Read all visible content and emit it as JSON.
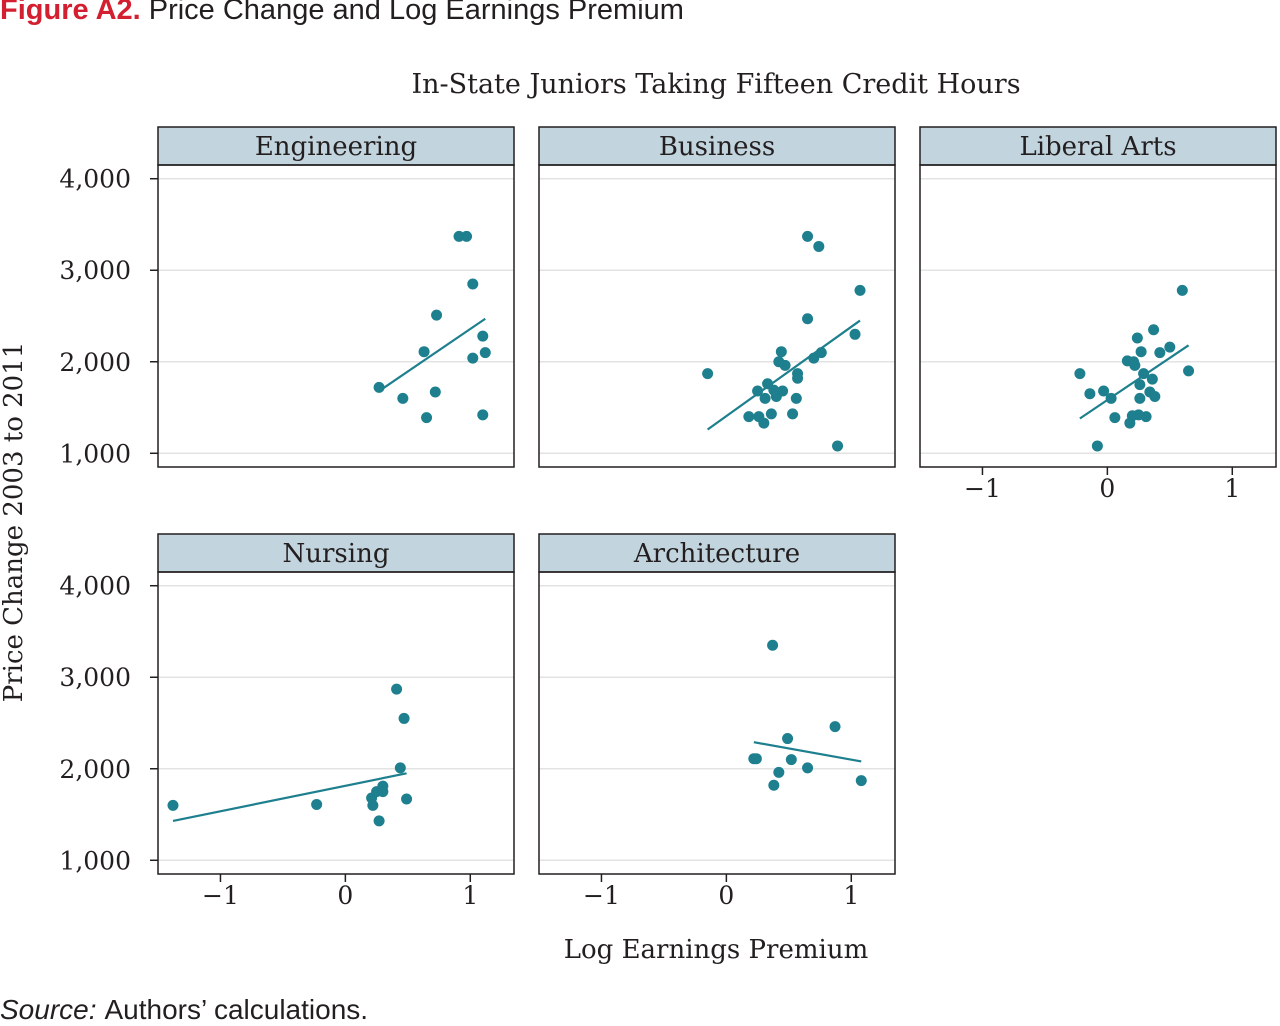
{
  "figure": {
    "number": "Figure A2.",
    "title": "Price Change and Log Earnings Premium",
    "source_label": "Source:",
    "source_text": "Authors’ calculations."
  },
  "chart_data": {
    "type": "scatter",
    "title": "In-State Juniors Taking Fifteen Credit Hours",
    "xlabel": "Log Earnings Premium",
    "ylabel": "Price Change 2003 to 2011",
    "xlim": [
      -1.5,
      1.35
    ],
    "ylim": [
      850,
      4150
    ],
    "xticks": [
      -1,
      0,
      1
    ],
    "xtick_labels": [
      "−1",
      "0",
      "1"
    ],
    "yticks": [
      1000,
      2000,
      3000,
      4000
    ],
    "ytick_labels": [
      "1,000",
      "2,000",
      "3,000",
      "4,000"
    ],
    "grid": "horizontal",
    "legend": "none",
    "colors": {
      "points": "#1e7f8e",
      "fit_line": "#1e7f8e",
      "panel_strip": "#c2d4dd",
      "gridline": "#e3e3e3"
    },
    "panels": [
      {
        "name": "Engineering",
        "points": [
          [
            0.27,
            1720
          ],
          [
            0.46,
            1600
          ],
          [
            0.63,
            2110
          ],
          [
            0.65,
            1390
          ],
          [
            0.72,
            1670
          ],
          [
            0.73,
            2510
          ],
          [
            0.91,
            3370
          ],
          [
            0.97,
            3370
          ],
          [
            1.02,
            2850
          ],
          [
            1.02,
            2040
          ],
          [
            1.1,
            2280
          ],
          [
            1.1,
            1420
          ],
          [
            1.12,
            2100
          ]
        ],
        "fit": [
          [
            0.27,
            1680
          ],
          [
            1.12,
            2470
          ]
        ]
      },
      {
        "name": "Business",
        "points": [
          [
            -0.15,
            1870
          ],
          [
            0.18,
            1400
          ],
          [
            0.25,
            1680
          ],
          [
            0.26,
            1400
          ],
          [
            0.3,
            1330
          ],
          [
            0.31,
            1600
          ],
          [
            0.33,
            1760
          ],
          [
            0.36,
            1430
          ],
          [
            0.38,
            1690
          ],
          [
            0.4,
            1620
          ],
          [
            0.42,
            2000
          ],
          [
            0.44,
            2110
          ],
          [
            0.45,
            1680
          ],
          [
            0.47,
            1960
          ],
          [
            0.53,
            1430
          ],
          [
            0.56,
            1600
          ],
          [
            0.57,
            1870
          ],
          [
            0.57,
            1820
          ],
          [
            0.65,
            3370
          ],
          [
            0.65,
            2470
          ],
          [
            0.7,
            2040
          ],
          [
            0.74,
            3260
          ],
          [
            0.76,
            2100
          ],
          [
            0.89,
            1080
          ],
          [
            1.03,
            2300
          ],
          [
            1.07,
            2780
          ]
        ],
        "fit": [
          [
            -0.15,
            1260
          ],
          [
            1.07,
            2450
          ]
        ]
      },
      {
        "name": "Liberal Arts",
        "points": [
          [
            -0.22,
            1870
          ],
          [
            -0.14,
            1650
          ],
          [
            -0.08,
            1080
          ],
          [
            -0.03,
            1680
          ],
          [
            0.03,
            1600
          ],
          [
            0.06,
            1390
          ],
          [
            0.16,
            2010
          ],
          [
            0.18,
            1330
          ],
          [
            0.2,
            1410
          ],
          [
            0.21,
            2000
          ],
          [
            0.22,
            1960
          ],
          [
            0.24,
            2260
          ],
          [
            0.25,
            1420
          ],
          [
            0.26,
            1750
          ],
          [
            0.26,
            1600
          ],
          [
            0.27,
            2110
          ],
          [
            0.29,
            1870
          ],
          [
            0.31,
            1400
          ],
          [
            0.34,
            1670
          ],
          [
            0.36,
            1810
          ],
          [
            0.37,
            2350
          ],
          [
            0.38,
            1620
          ],
          [
            0.42,
            2100
          ],
          [
            0.5,
            2160
          ],
          [
            0.6,
            2780
          ],
          [
            0.65,
            1900
          ]
        ],
        "fit": [
          [
            -0.22,
            1380
          ],
          [
            0.65,
            2180
          ]
        ]
      },
      {
        "name": "Nursing",
        "points": [
          [
            -1.38,
            1600
          ],
          [
            -0.23,
            1610
          ],
          [
            0.21,
            1680
          ],
          [
            0.22,
            1600
          ],
          [
            0.25,
            1750
          ],
          [
            0.27,
            1430
          ],
          [
            0.3,
            1810
          ],
          [
            0.3,
            1750
          ],
          [
            0.41,
            2870
          ],
          [
            0.44,
            2010
          ],
          [
            0.47,
            2550
          ],
          [
            0.49,
            1670
          ]
        ],
        "fit": [
          [
            -1.38,
            1430
          ],
          [
            0.49,
            1950
          ]
        ]
      },
      {
        "name": "Architecture",
        "points": [
          [
            0.22,
            2110
          ],
          [
            0.24,
            2110
          ],
          [
            0.37,
            3350
          ],
          [
            0.38,
            1820
          ],
          [
            0.42,
            1960
          ],
          [
            0.49,
            2330
          ],
          [
            0.52,
            2100
          ],
          [
            0.65,
            2010
          ],
          [
            0.87,
            2460
          ],
          [
            1.08,
            1870
          ]
        ],
        "fit": [
          [
            0.22,
            2290
          ],
          [
            1.08,
            2080
          ]
        ]
      }
    ]
  }
}
